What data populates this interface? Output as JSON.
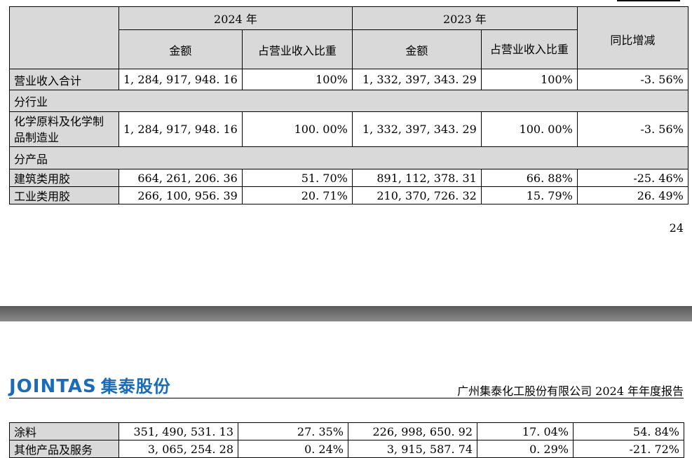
{
  "table": {
    "header": {
      "year_2024": "2024 年",
      "year_2023": "2023 年",
      "amount": "金额",
      "ratio_2024": "占营业收入比重",
      "ratio_2023": "占营业收入比重",
      "yoy": "同比增减"
    },
    "rows": [
      {
        "label": "营业收入合计",
        "a24": "1, 284, 917, 948. 16",
        "r24": "100%",
        "a23": "1, 332, 397, 343. 29",
        "r23": "100%",
        "yoy": "-3. 56%"
      },
      {
        "label": "化学原料及化学制品制造业",
        "a24": "1, 284, 917, 948. 16",
        "r24": "100. 00%",
        "a23": "1, 332, 397, 343. 29",
        "r23": "100. 00%",
        "yoy": "-3. 56%"
      },
      {
        "label": "建筑类用胶",
        "a24": "664, 261, 206. 36",
        "r24": "51. 70%",
        "a23": "891, 112, 378. 31",
        "r23": "66. 88%",
        "yoy": "-25. 46%"
      },
      {
        "label": "工业类用胶",
        "a24": "266, 100, 956. 39",
        "r24": "20. 71%",
        "a23": "210, 370, 726. 32",
        "r23": "15. 79%",
        "yoy": "26. 49%"
      },
      {
        "label": "涂料",
        "a24": "351, 490, 531. 13",
        "r24": "27. 35%",
        "a23": "226, 998, 650. 92",
        "r23": "17. 04%",
        "yoy": "54. 84%"
      },
      {
        "label": "其他产品及服务",
        "a24": "3, 065, 254. 28",
        "r24": "0. 24%",
        "a23": "3, 915, 587. 74",
        "r23": "0. 29%",
        "yoy": "-21. 72%"
      }
    ],
    "sections": {
      "by_industry": "分行业",
      "by_product": "分产品"
    }
  },
  "page_number": "24",
  "header": {
    "logo_latin": "JOINTAS",
    "logo_cn": "集泰股份",
    "title": "广州集泰化工股份有限公司 2024 年年度报告"
  },
  "colors": {
    "logo_blue": "#1a6bb8",
    "header_gray": "#d9d9d9"
  }
}
